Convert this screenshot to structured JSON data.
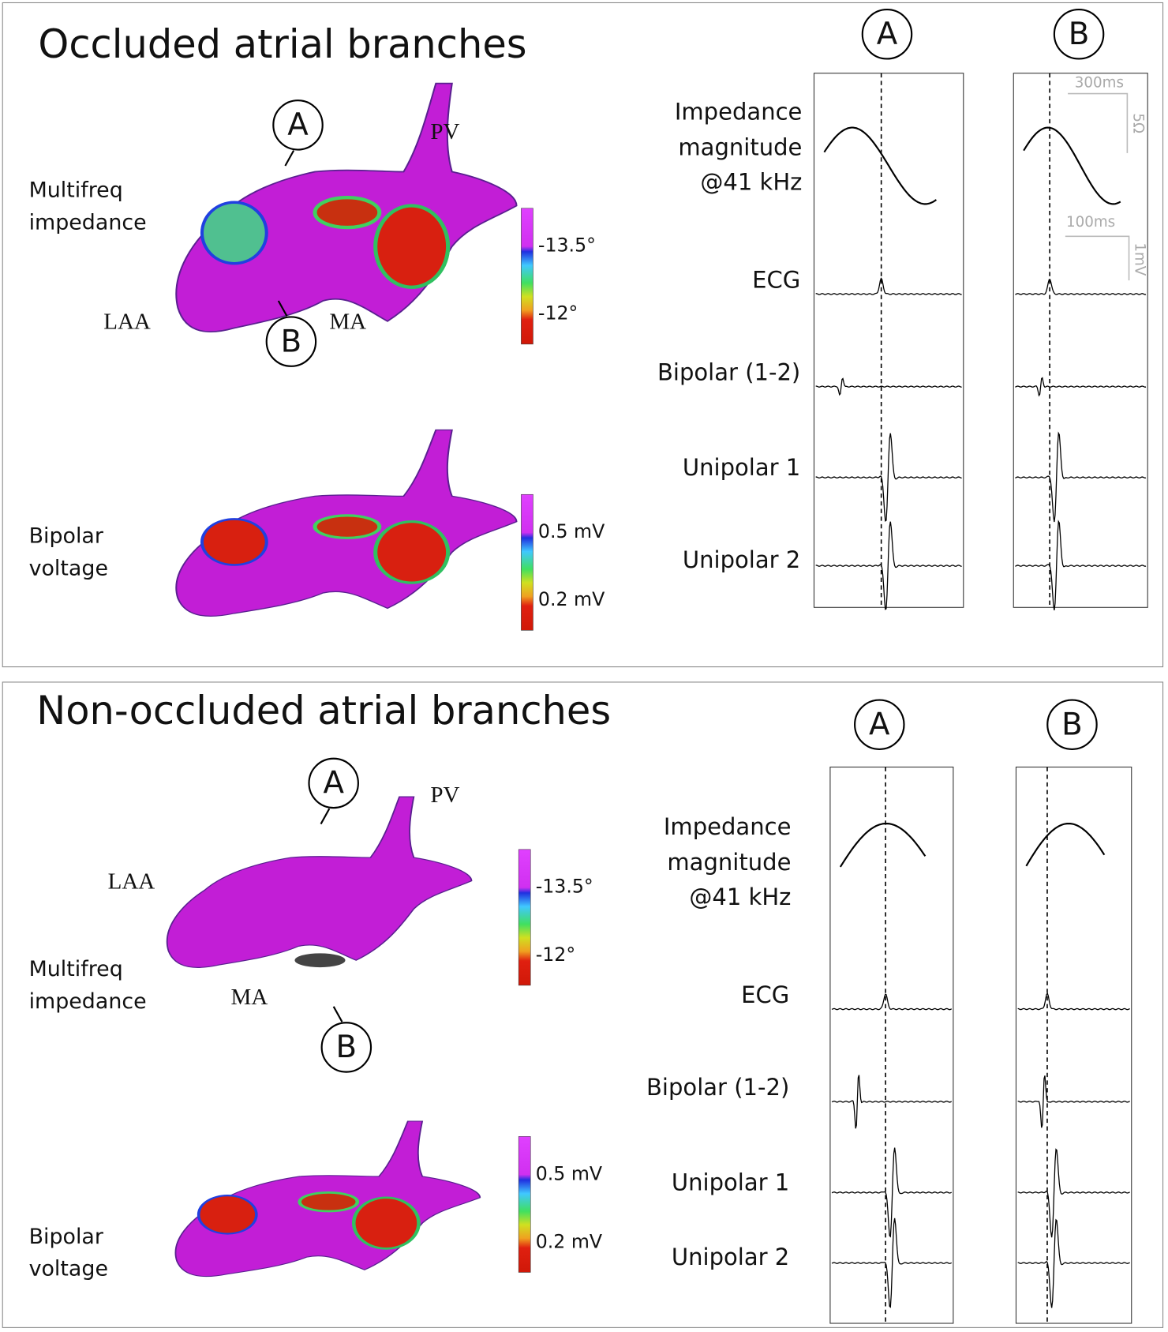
{
  "panels": [
    {
      "title": "Occluded atrial branches",
      "map_markers": [
        "A",
        "B"
      ],
      "anatomy": [
        "PV",
        "LAA",
        "MA"
      ],
      "impedance_map_label": [
        "Multifreq",
        "impedance"
      ],
      "voltage_map_label": [
        "Bipolar",
        "voltage"
      ],
      "impedance_colorbar": [
        "-13.5°",
        "-12°"
      ],
      "voltage_colorbar": [
        "0.5 mV",
        "0.2 mV"
      ],
      "trace_columns": [
        "A",
        "B"
      ],
      "trace_labels": {
        "impedance": [
          "Impedance",
          "magnitude",
          "@41 kHz"
        ],
        "ecg": "ECG",
        "bipolar": "Bipolar (1-2)",
        "unipolar_1": "Unipolar 1",
        "unipolar_2": "Unipolar 2"
      },
      "scale_bars": [
        "300ms",
        "5Ω",
        "100ms",
        "1mV"
      ]
    },
    {
      "title": "Non-occluded atrial branches",
      "map_markers": [
        "A",
        "B"
      ],
      "anatomy": [
        "PV",
        "LAA",
        "MA"
      ],
      "impedance_map_label": [
        "Multifreq",
        "impedance"
      ],
      "voltage_map_label": [
        "Bipolar",
        "voltage"
      ],
      "impedance_colorbar": [
        "-13.5°",
        "-12°"
      ],
      "voltage_colorbar": [
        "0.5 mV",
        "0.2 mV"
      ],
      "trace_columns": [
        "A",
        "B"
      ],
      "trace_labels": {
        "impedance": [
          "Impedance",
          "magnitude",
          "@41 kHz"
        ],
        "ecg": "ECG",
        "bipolar": "Bipolar (1-2)",
        "unipolar_1": "Unipolar 1",
        "unipolar_2": "Unipolar 2"
      }
    }
  ]
}
